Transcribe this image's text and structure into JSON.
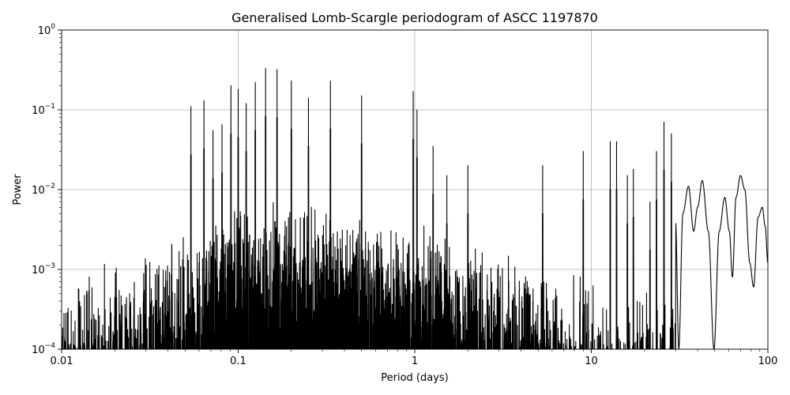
{
  "chart_data": {
    "type": "line",
    "title": "Generalised Lomb-Scargle periodogram of ASCC 1197870",
    "xlabel": "Period (days)",
    "ylabel": "Power",
    "xscale": "log",
    "yscale": "log",
    "xlim": [
      0.01,
      100
    ],
    "ylim": [
      0.0001,
      1
    ],
    "grid": true,
    "x_ticks": [
      {
        "value": 0.01,
        "label": "0.01"
      },
      {
        "value": 0.1,
        "label": "0.1"
      },
      {
        "value": 1,
        "label": "1"
      },
      {
        "value": 10,
        "label": "10"
      },
      {
        "value": 100,
        "label": "100"
      }
    ],
    "y_ticks": [
      {
        "value": 0.0001,
        "base": "10",
        "exp": "−4"
      },
      {
        "value": 0.001,
        "base": "10",
        "exp": "−3"
      },
      {
        "value": 0.01,
        "base": "10",
        "exp": "−2"
      },
      {
        "value": 0.1,
        "base": "10",
        "exp": "−1"
      },
      {
        "value": 1,
        "base": "10",
        "exp": "0"
      }
    ],
    "series": [
      {
        "color": "#000000",
        "peaks": [
          {
            "x": 0.054,
            "y": 0.11
          },
          {
            "x": 0.064,
            "y": 0.13
          },
          {
            "x": 0.072,
            "y": 0.055
          },
          {
            "x": 0.081,
            "y": 0.065
          },
          {
            "x": 0.091,
            "y": 0.2
          },
          {
            "x": 0.1,
            "y": 0.18
          },
          {
            "x": 0.111,
            "y": 0.12
          },
          {
            "x": 0.125,
            "y": 0.22
          },
          {
            "x": 0.143,
            "y": 0.33
          },
          {
            "x": 0.166,
            "y": 0.32
          },
          {
            "x": 0.2,
            "y": 0.23
          },
          {
            "x": 0.25,
            "y": 0.14
          },
          {
            "x": 0.333,
            "y": 0.23
          },
          {
            "x": 0.5,
            "y": 0.15
          },
          {
            "x": 0.98,
            "y": 0.17
          },
          {
            "x": 1.03,
            "y": 0.1
          },
          {
            "x": 1.27,
            "y": 0.035
          },
          {
            "x": 1.52,
            "y": 0.015
          },
          {
            "x": 2.0,
            "y": 0.02
          },
          {
            "x": 5.3,
            "y": 0.02
          },
          {
            "x": 9.0,
            "y": 0.03
          },
          {
            "x": 12.8,
            "y": 0.04
          },
          {
            "x": 13.9,
            "y": 0.04
          },
          {
            "x": 16.0,
            "y": 0.015
          },
          {
            "x": 17.3,
            "y": 0.018
          },
          {
            "x": 21.5,
            "y": 0.007
          },
          {
            "x": 23.4,
            "y": 0.03
          },
          {
            "x": 25.8,
            "y": 0.07
          },
          {
            "x": 28.4,
            "y": 0.05
          }
        ],
        "smooth_tail": [
          {
            "x": 30.0,
            "y": 0.004
          },
          {
            "x": 31.3,
            "y": 0.0001
          },
          {
            "x": 33.0,
            "y": 0.005
          },
          {
            "x": 35.5,
            "y": 0.011
          },
          {
            "x": 38.0,
            "y": 0.003
          },
          {
            "x": 40.0,
            "y": 0.006
          },
          {
            "x": 42.5,
            "y": 0.013
          },
          {
            "x": 46.0,
            "y": 0.003
          },
          {
            "x": 49.5,
            "y": 0.0001
          },
          {
            "x": 53.0,
            "y": 0.003
          },
          {
            "x": 57.0,
            "y": 0.008
          },
          {
            "x": 60.5,
            "y": 0.003
          },
          {
            "x": 63.0,
            "y": 0.0008
          },
          {
            "x": 66.0,
            "y": 0.008
          },
          {
            "x": 70.0,
            "y": 0.015
          },
          {
            "x": 74.0,
            "y": 0.01
          },
          {
            "x": 79.0,
            "y": 0.0012
          },
          {
            "x": 83.0,
            "y": 0.0006
          },
          {
            "x": 88.0,
            "y": 0.0045
          },
          {
            "x": 93.0,
            "y": 0.006
          },
          {
            "x": 96.5,
            "y": 0.0035
          },
          {
            "x": 100.0,
            "y": 0.0012
          }
        ]
      }
    ]
  }
}
